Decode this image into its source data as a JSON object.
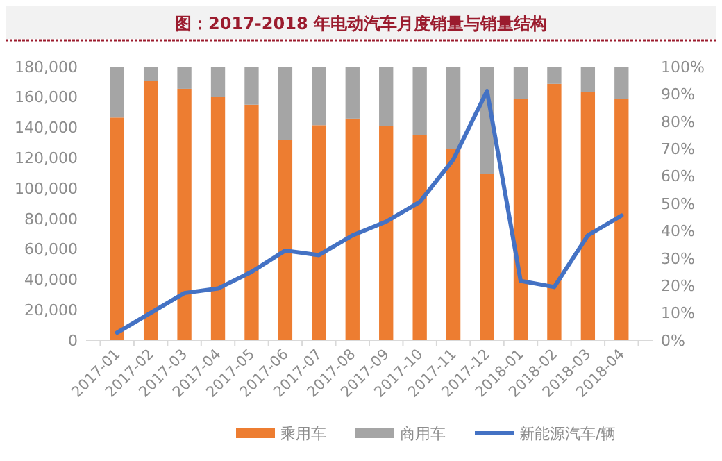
{
  "chart_data": {
    "type": "bar",
    "title": "图：2017-2018 年电动汽车月度销量与销量结构",
    "categories": [
      "2017-01",
      "2017-02",
      "2017-03",
      "2017-04",
      "2017-05",
      "2017-06",
      "2017-07",
      "2017-08",
      "2017-09",
      "2017-10",
      "2017-11",
      "2017-12",
      "2018-01",
      "2018-02",
      "2018-03",
      "2018-04"
    ],
    "stacked": true,
    "series": [
      {
        "name": "乘用车",
        "axis": "y2",
        "color": "#ed7d31",
        "values": [
          81.4,
          94.9,
          91.9,
          89.0,
          86.1,
          73.2,
          78.6,
          81.0,
          78.3,
          74.9,
          69.8,
          60.7,
          88.1,
          93.7,
          90.7,
          88.1
        ]
      },
      {
        "name": "商用车",
        "axis": "y2",
        "color": "#a5a5a5",
        "values": [
          18.6,
          5.1,
          8.1,
          11.0,
          13.9,
          26.8,
          21.4,
          19.0,
          21.7,
          25.1,
          30.2,
          39.3,
          11.9,
          6.3,
          9.3,
          11.9
        ]
      },
      {
        "name": "新能源汽车/辆",
        "type": "line",
        "color": "#4472c4",
        "values": [
          5000,
          18000,
          31000,
          34000,
          45000,
          59000,
          56000,
          69000,
          78000,
          91000,
          119000,
          164000,
          39000,
          35000,
          69000,
          82000
        ]
      }
    ],
    "ylim": [
      0,
      180000
    ],
    "yticks": [
      {
        "value": 0,
        "label": "0"
      },
      {
        "value": 20000,
        "label": "20,000"
      },
      {
        "value": 40000,
        "label": "40,000"
      },
      {
        "value": 60000,
        "label": "60,000"
      },
      {
        "value": 80000,
        "label": "80,000"
      },
      {
        "value": 100000,
        "label": "100,000"
      },
      {
        "value": 120000,
        "label": "120,000"
      },
      {
        "value": 140000,
        "label": "140,000"
      },
      {
        "value": 160000,
        "label": "160,000"
      },
      {
        "value": 180000,
        "label": "180,000"
      }
    ],
    "y2lim": [
      0,
      100
    ],
    "y2ticks": [
      {
        "value": 0,
        "label": "0%"
      },
      {
        "value": 10,
        "label": "10%"
      },
      {
        "value": 20,
        "label": "20%"
      },
      {
        "value": 30,
        "label": "30%"
      },
      {
        "value": 40,
        "label": "40%"
      },
      {
        "value": 50,
        "label": "50%"
      },
      {
        "value": 60,
        "label": "60%"
      },
      {
        "value": 70,
        "label": "70%"
      },
      {
        "value": 80,
        "label": "80%"
      },
      {
        "value": 90,
        "label": "90%"
      },
      {
        "value": 100,
        "label": "100%"
      }
    ],
    "legend": "bottom",
    "marker": "none",
    "line_style": "solid"
  }
}
